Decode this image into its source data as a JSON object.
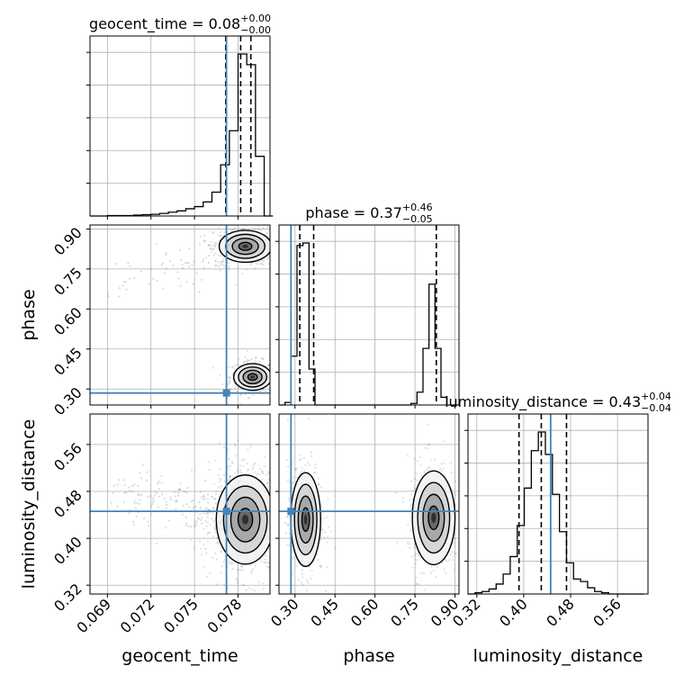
{
  "chart_data": {
    "type": "corner",
    "parameters": [
      "geocent_time",
      "phase",
      "luminosity_distance"
    ],
    "truth": {
      "geocent_time": 0.0772,
      "phase": 0.285,
      "luminosity_distance": 0.446
    },
    "colors": {
      "truth": "#4682b4",
      "hist": "#000000",
      "grid": "#b0b0b0",
      "quantile": "#000000"
    },
    "grid": true,
    "titles": {
      "geocent_time": {
        "name": "geocent_time",
        "median": "0.08",
        "plus": "+0.00",
        "minus": "−0.00"
      },
      "phase": {
        "name": "phase",
        "median": "0.37",
        "plus": "+0.46",
        "minus": "−0.05"
      },
      "luminosity_distance": {
        "name": "luminosity_distance",
        "median": "0.43",
        "plus": "+0.04",
        "minus": "−0.04"
      }
    },
    "axes": {
      "geocent_time": {
        "range": [
          0.0678,
          0.0802
        ],
        "ticks": [
          0.069,
          0.072,
          0.075,
          0.078
        ],
        "tick_labels": [
          "0.069",
          "0.072",
          "0.075",
          "0.078"
        ],
        "label": "geocent_time"
      },
      "phase": {
        "range": [
          0.24,
          0.915
        ],
        "ticks": [
          0.3,
          0.45,
          0.6,
          0.75,
          0.9
        ],
        "tick_labels": [
          "0.30",
          "0.45",
          "0.60",
          "0.75",
          "0.90"
        ],
        "label": "phase"
      },
      "luminosity_distance": {
        "range": [
          0.305,
          0.612
        ],
        "ticks": [
          0.32,
          0.4,
          0.48,
          0.56
        ],
        "tick_labels": [
          "0.32",
          "0.40",
          "0.48",
          "0.56"
        ],
        "label": "luminosity_distance"
      }
    },
    "marginals": {
      "geocent_time": {
        "edges": [
          0.0678,
          0.0684,
          0.069,
          0.0696,
          0.0702,
          0.0708,
          0.0714,
          0.072,
          0.0726,
          0.0732,
          0.0738,
          0.0744,
          0.075,
          0.0756,
          0.0762,
          0.0768,
          0.0774,
          0.078,
          0.0786,
          0.0792,
          0.0798,
          0.0804
        ],
        "counts": [
          0,
          0,
          1,
          1,
          1,
          2,
          3,
          4,
          6,
          9,
          12,
          17,
          22,
          33,
          56,
          120,
          200,
          380,
          355,
          140,
          0
        ],
        "quantiles": [
          0.07715,
          0.07818,
          0.07888
        ]
      },
      "phase": {
        "edges": [
          0.24,
          0.2625,
          0.285,
          0.3075,
          0.33,
          0.3525,
          0.375,
          0.3975,
          0.42,
          0.4425,
          0.465,
          0.4875,
          0.51,
          0.5325,
          0.555,
          0.5775,
          0.6,
          0.6225,
          0.645,
          0.6675,
          0.69,
          0.7125,
          0.735,
          0.7575,
          0.78,
          0.8025,
          0.825,
          0.8475,
          0.87,
          0.8925,
          0.915
        ],
        "counts": [
          0,
          5,
          95,
          310,
          315,
          70,
          0,
          0,
          0,
          0,
          0,
          0,
          0,
          0,
          0,
          0,
          0,
          0,
          0,
          0,
          0,
          0,
          3,
          25,
          110,
          235,
          110,
          15,
          0,
          0
        ],
        "quantiles": [
          0.318,
          0.37,
          0.83
        ]
      },
      "luminosity_distance": {
        "edges": [
          0.305,
          0.317,
          0.329,
          0.341,
          0.353,
          0.365,
          0.377,
          0.389,
          0.401,
          0.413,
          0.425,
          0.437,
          0.449,
          0.461,
          0.473,
          0.485,
          0.497,
          0.509,
          0.521,
          0.533,
          0.545,
          0.557,
          0.569,
          0.581,
          0.593,
          0.605
        ],
        "counts": [
          0,
          1,
          2,
          4,
          8,
          16,
          30,
          55,
          85,
          115,
          130,
          112,
          80,
          50,
          25,
          12,
          10,
          5,
          2,
          1,
          0,
          0,
          0,
          0,
          0
        ],
        "quantiles": [
          0.392,
          0.43,
          0.473
        ]
      }
    },
    "joint": [
      {
        "x": "geocent_time",
        "y": "phase",
        "modes": [
          {
            "cx": 0.079,
            "cy": 0.345,
            "sx": 0.00065,
            "sy": 0.025,
            "w": 0.5
          },
          {
            "cx": 0.0785,
            "cy": 0.835,
            "sx": 0.0009,
            "sy": 0.03,
            "w": 0.5
          }
        ],
        "tails": [
          {
            "from": [
              0.0772,
              0.8
            ],
            "to": [
              0.07,
              0.7
            ],
            "n": 70
          }
        ]
      },
      {
        "x": "geocent_time",
        "y": "luminosity_distance",
        "modes": [
          {
            "cx": 0.0785,
            "cy": 0.432,
            "sx": 0.001,
            "sy": 0.038,
            "w": 1.0
          }
        ],
        "tails": [
          {
            "from": [
              0.0772,
              0.44
            ],
            "to": [
              0.07,
              0.48
            ],
            "n": 150
          }
        ]
      },
      {
        "x": "phase",
        "y": "luminosity_distance",
        "modes": [
          {
            "cx": 0.34,
            "cy": 0.432,
            "sx": 0.028,
            "sy": 0.04,
            "w": 0.5
          },
          {
            "cx": 0.82,
            "cy": 0.435,
            "sx": 0.04,
            "sy": 0.04,
            "w": 0.5
          }
        ],
        "tails": []
      }
    ]
  }
}
